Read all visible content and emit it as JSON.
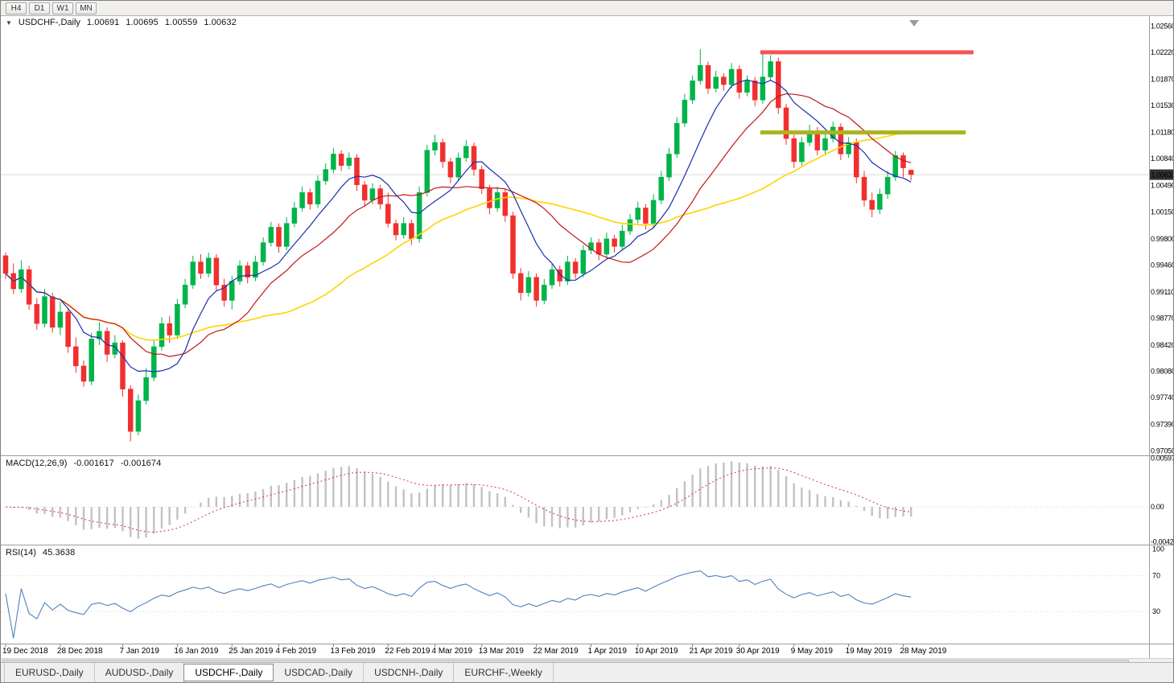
{
  "toolbar": {
    "timeframes": [
      "H4",
      "D1",
      "W1",
      "MN"
    ]
  },
  "chart_header": {
    "collapse_icon": "▼",
    "symbol": "USDCHF-,Daily",
    "open": "1.00691",
    "high": "1.00695",
    "low": "1.00559",
    "close": "1.00632"
  },
  "price_axis": {
    "labels": [
      "1.02560",
      "1.02220",
      "1.01870",
      "1.01530",
      "1.01180",
      "1.00840",
      "1.00490",
      "1.00150",
      "0.99800",
      "0.99460",
      "0.99110",
      "0.98770",
      "0.98420",
      "0.98080",
      "0.97740",
      "0.97390",
      "0.97050"
    ],
    "current_price": "1.00632"
  },
  "macd_panel": {
    "title": "MACD(12,26,9)",
    "value_main": "-0.001617",
    "value_signal": "-0.001674",
    "axis_labels": [
      "0.00597",
      "0.00",
      "-0.00424"
    ]
  },
  "rsi_panel": {
    "title": "RSI(14)",
    "value": "45.3638",
    "axis_labels": [
      "100",
      "70",
      "30"
    ]
  },
  "time_axis": {
    "labels": [
      {
        "text": "19 Dec 2018",
        "index": 0
      },
      {
        "text": "28 Dec 2018",
        "index": 7
      },
      {
        "text": "7 Jan 2019",
        "index": 15
      },
      {
        "text": "16 Jan 2019",
        "index": 22
      },
      {
        "text": "25 Jan 2019",
        "index": 29
      },
      {
        "text": "4 Feb 2019",
        "index": 35
      },
      {
        "text": "13 Feb 2019",
        "index": 42
      },
      {
        "text": "22 Feb 2019",
        "index": 49
      },
      {
        "text": "4 Mar 2019",
        "index": 55
      },
      {
        "text": "13 Mar 2019",
        "index": 61
      },
      {
        "text": "22 Mar 2019",
        "index": 68
      },
      {
        "text": "1 Apr 2019",
        "index": 75
      },
      {
        "text": "10 Apr 2019",
        "index": 81
      },
      {
        "text": "21 Apr 2019",
        "index": 88
      },
      {
        "text": "30 Apr 2019",
        "index": 94
      },
      {
        "text": "9 May 2019",
        "index": 101
      },
      {
        "text": "19 May 2019",
        "index": 108
      },
      {
        "text": "28 May 2019",
        "index": 115
      }
    ]
  },
  "tabs": [
    {
      "label": "EURUSD-,Daily",
      "active": false
    },
    {
      "label": "AUDUSD-,Daily",
      "active": false
    },
    {
      "label": "USDCHF-,Daily",
      "active": true
    },
    {
      "label": "USDCAD-,Daily",
      "active": false
    },
    {
      "label": "USDCNH-,Daily",
      "active": false
    },
    {
      "label": "EURCHF-,Weekly",
      "active": false
    }
  ],
  "chart_data": {
    "type": "candlestick",
    "title": "USDCHF Daily",
    "price_scale": {
      "max": 1.027,
      "min": 0.9699
    },
    "candles": [
      [
        0.9958,
        0.9962,
        0.9928,
        0.9935
      ],
      [
        0.9935,
        0.9948,
        0.9908,
        0.9915
      ],
      [
        0.9915,
        0.9952,
        0.991,
        0.994
      ],
      [
        0.994,
        0.9945,
        0.9888,
        0.9895
      ],
      [
        0.9895,
        0.9903,
        0.9862,
        0.987
      ],
      [
        0.987,
        0.9915,
        0.9865,
        0.9905
      ],
      [
        0.9905,
        0.991,
        0.9858,
        0.9865
      ],
      [
        0.9865,
        0.9898,
        0.9855,
        0.9885
      ],
      [
        0.9885,
        0.989,
        0.9832,
        0.984
      ],
      [
        0.984,
        0.9852,
        0.9806,
        0.9815
      ],
      [
        0.9815,
        0.9822,
        0.9788,
        0.9795
      ],
      [
        0.9795,
        0.9858,
        0.979,
        0.985
      ],
      [
        0.985,
        0.9872,
        0.9842,
        0.986
      ],
      [
        0.986,
        0.9865,
        0.982,
        0.983
      ],
      [
        0.983,
        0.9855,
        0.9825,
        0.9845
      ],
      [
        0.9845,
        0.9848,
        0.9775,
        0.9785
      ],
      [
        0.9785,
        0.979,
        0.9717,
        0.973
      ],
      [
        0.973,
        0.9778,
        0.9725,
        0.977
      ],
      [
        0.977,
        0.9812,
        0.9765,
        0.98
      ],
      [
        0.98,
        0.9848,
        0.9795,
        0.984
      ],
      [
        0.984,
        0.9878,
        0.9835,
        0.987
      ],
      [
        0.987,
        0.988,
        0.9845,
        0.9855
      ],
      [
        0.9855,
        0.9902,
        0.985,
        0.9895
      ],
      [
        0.9895,
        0.9928,
        0.989,
        0.992
      ],
      [
        0.992,
        0.9958,
        0.9915,
        0.995
      ],
      [
        0.995,
        0.996,
        0.9928,
        0.9935
      ],
      [
        0.9935,
        0.9962,
        0.993,
        0.9955
      ],
      [
        0.9955,
        0.996,
        0.9912,
        0.992
      ],
      [
        0.992,
        0.9928,
        0.9892,
        0.99
      ],
      [
        0.99,
        0.9932,
        0.9888,
        0.9925
      ],
      [
        0.9925,
        0.9952,
        0.992,
        0.9945
      ],
      [
        0.9945,
        0.995,
        0.9922,
        0.993
      ],
      [
        0.993,
        0.9958,
        0.9925,
        0.995
      ],
      [
        0.995,
        0.9982,
        0.9945,
        0.9975
      ],
      [
        0.9975,
        1.0002,
        0.997,
        0.9995
      ],
      [
        0.9995,
        1.0,
        0.9962,
        0.997
      ],
      [
        0.997,
        1.0008,
        0.9965,
        1.0
      ],
      [
        1.0,
        1.0028,
        0.9995,
        1.002
      ],
      [
        1.002,
        1.0048,
        1.0015,
        1.004
      ],
      [
        1.004,
        1.0045,
        1.0018,
        1.0025
      ],
      [
        1.0025,
        1.0062,
        1.002,
        1.0055
      ],
      [
        1.0055,
        1.0078,
        1.005,
        1.007
      ],
      [
        1.007,
        1.0098,
        1.0065,
        1.009
      ],
      [
        1.009,
        1.0095,
        1.0068,
        1.0075
      ],
      [
        1.0075,
        1.0092,
        1.007,
        1.0085
      ],
      [
        1.0085,
        1.009,
        1.0042,
        1.005
      ],
      [
        1.005,
        1.0055,
        1.0022,
        1.003
      ],
      [
        1.003,
        1.0052,
        1.0025,
        1.0045
      ],
      [
        1.0045,
        1.005,
        1.0018,
        1.0025
      ],
      [
        1.0025,
        1.004,
        0.9995,
        1.0
      ],
      [
        1.0,
        1.0005,
        0.9978,
        0.9985
      ],
      [
        0.9985,
        1.0008,
        0.998,
        1.0
      ],
      [
        1.0,
        1.0005,
        0.9972,
        0.998
      ],
      [
        0.998,
        1.0048,
        0.9975,
        1.004
      ],
      [
        1.004,
        1.0102,
        1.0035,
        1.0095
      ],
      [
        1.0095,
        1.0115,
        1.0088,
        1.0105
      ],
      [
        1.0105,
        1.011,
        1.0072,
        1.008
      ],
      [
        1.008,
        1.0085,
        1.0052,
        1.006
      ],
      [
        1.006,
        1.0092,
        1.0055,
        1.0085
      ],
      [
        1.0085,
        1.0108,
        1.008,
        1.01
      ],
      [
        1.01,
        1.0105,
        1.0062,
        1.007
      ],
      [
        1.007,
        1.0075,
        1.0038,
        1.0045
      ],
      [
        1.0045,
        1.005,
        1.0012,
        1.002
      ],
      [
        1.002,
        1.0048,
        1.0015,
        1.004
      ],
      [
        1.004,
        1.0045,
        1.0002,
        1.001
      ],
      [
        1.001,
        1.0015,
        0.9928,
        0.9935
      ],
      [
        0.9935,
        0.9942,
        0.99,
        0.991
      ],
      [
        0.991,
        0.9938,
        0.9905,
        0.993
      ],
      [
        0.993,
        0.9935,
        0.9892,
        0.99
      ],
      [
        0.99,
        0.9928,
        0.9895,
        0.992
      ],
      [
        0.992,
        0.9948,
        0.9915,
        0.994
      ],
      [
        0.994,
        0.9945,
        0.9918,
        0.9925
      ],
      [
        0.9925,
        0.9958,
        0.992,
        0.995
      ],
      [
        0.995,
        0.9955,
        0.9928,
        0.9935
      ],
      [
        0.9935,
        0.9972,
        0.993,
        0.9965
      ],
      [
        0.9965,
        0.9982,
        0.996,
        0.9975
      ],
      [
        0.9975,
        0.998,
        0.9952,
        0.996
      ],
      [
        0.996,
        0.9988,
        0.9955,
        0.998
      ],
      [
        0.998,
        0.9985,
        0.9962,
        0.997
      ],
      [
        0.997,
        0.9998,
        0.9965,
        0.999
      ],
      [
        0.999,
        1.0012,
        0.9985,
        1.0005
      ],
      [
        1.0005,
        1.0028,
        1.0,
        1.002
      ],
      [
        1.002,
        1.0025,
        0.9992,
        1.0
      ],
      [
        1.0,
        1.0038,
        0.9995,
        1.003
      ],
      [
        1.003,
        1.0068,
        1.0025,
        1.006
      ],
      [
        1.006,
        1.0098,
        1.0055,
        1.009
      ],
      [
        1.009,
        1.0138,
        1.0085,
        1.013
      ],
      [
        1.013,
        1.0168,
        1.0125,
        1.016
      ],
      [
        1.016,
        1.0192,
        1.0155,
        1.0185
      ],
      [
        1.0185,
        1.0226,
        1.018,
        1.0205
      ],
      [
        1.0205,
        1.021,
        1.0168,
        1.0175
      ],
      [
        1.0175,
        1.0198,
        1.017,
        1.019
      ],
      [
        1.019,
        1.0195,
        1.0172,
        1.018
      ],
      [
        1.018,
        1.0208,
        1.0175,
        1.02
      ],
      [
        1.02,
        1.0205,
        1.0162,
        1.017
      ],
      [
        1.017,
        1.0192,
        1.0165,
        1.0185
      ],
      [
        1.0185,
        1.019,
        1.0152,
        1.016
      ],
      [
        1.016,
        1.0222,
        1.0155,
        1.019
      ],
      [
        1.019,
        1.0218,
        1.0185,
        1.021
      ],
      [
        1.021,
        1.0215,
        1.0142,
        1.015
      ],
      [
        1.015,
        1.0155,
        1.0102,
        1.011
      ],
      [
        1.011,
        1.0115,
        1.0072,
        1.008
      ],
      [
        1.008,
        1.0112,
        1.0075,
        1.0105
      ],
      [
        1.0105,
        1.0128,
        1.01,
        1.012
      ],
      [
        1.012,
        1.0125,
        1.0088,
        1.0095
      ],
      [
        1.0095,
        1.0118,
        1.009,
        1.011
      ],
      [
        1.011,
        1.0132,
        1.0105,
        1.0125
      ],
      [
        1.0125,
        1.013,
        1.0082,
        1.009
      ],
      [
        1.009,
        1.0112,
        1.0085,
        1.0105
      ],
      [
        1.0105,
        1.011,
        1.0052,
        1.006
      ],
      [
        1.006,
        1.0068,
        1.0022,
        1.003
      ],
      [
        1.003,
        1.004,
        1.0008,
        1.0018
      ],
      [
        1.0018,
        1.0045,
        1.0012,
        1.0038
      ],
      [
        1.0038,
        1.0068,
        1.0032,
        1.006
      ],
      [
        1.006,
        1.0094,
        1.0055,
        1.0088
      ],
      [
        1.0088,
        1.0092,
        1.006,
        1.0072
      ],
      [
        1.00691,
        1.00695,
        1.00559,
        1.00632
      ]
    ],
    "moving_averages": [
      {
        "name": "fast",
        "period": 8,
        "color": "#1b2fad",
        "width": 1.2
      },
      {
        "name": "mid",
        "period": 16,
        "color": "#c11717",
        "width": 1.2
      },
      {
        "name": "slow",
        "period": 34,
        "color": "#ffd400",
        "width": 1.6
      }
    ],
    "horizontal_lines": [
      {
        "name": "resistance",
        "price": 1.0222,
        "from_index": 97,
        "to_index": 124,
        "color": "#f25454",
        "width": 5
      },
      {
        "name": "support",
        "price": 1.0118,
        "from_index": 97,
        "to_index": 123,
        "color": "#a9b41f",
        "width": 5
      }
    ],
    "macd": {
      "fast": 12,
      "slow": 26,
      "signal": 9,
      "scale_max": 0.0062,
      "scale_min": -0.0046
    },
    "rsi": {
      "period": 14,
      "levels": [
        70,
        30
      ],
      "scale_max": 104,
      "scale_min": -6
    },
    "colors": {
      "bull": "#00b44a",
      "bear": "#f22f2f",
      "macd_hist": "#c2c2c2",
      "macd_signal": "#e03030",
      "rsi_line": "#4f81bd",
      "current_price_line": "#d9d9d9",
      "badge_bg": "#303030",
      "badge_text": "#ffffff"
    }
  }
}
